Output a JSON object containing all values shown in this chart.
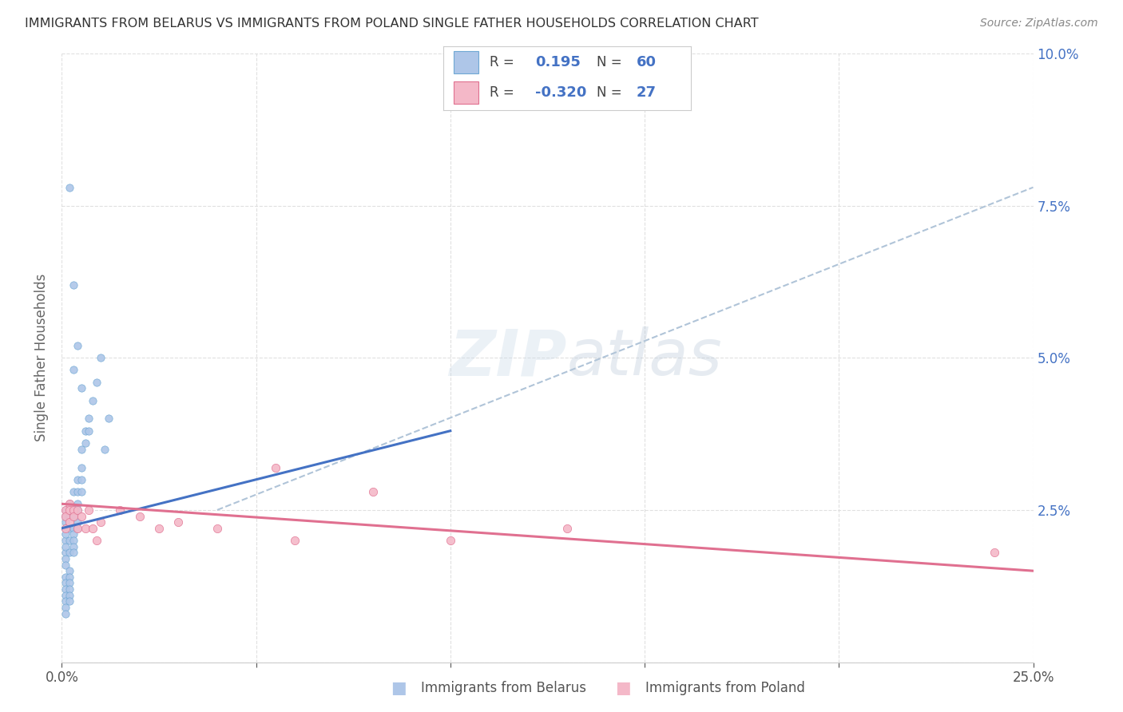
{
  "title": "IMMIGRANTS FROM BELARUS VS IMMIGRANTS FROM POLAND SINGLE FATHER HOUSEHOLDS CORRELATION CHART",
  "source": "Source: ZipAtlas.com",
  "ylabel": "Single Father Households",
  "watermark": "ZIPatlas",
  "legend_entries": [
    {
      "label": "Immigrants from Belarus",
      "color": "#aec6e8",
      "edge_color": "#6fa8d4",
      "R": 0.195,
      "N": 60
    },
    {
      "label": "Immigrants from Poland",
      "color": "#f4b8c8",
      "edge_color": "#e07090",
      "R": -0.32,
      "N": 27
    }
  ],
  "xlim": [
    0.0,
    0.25
  ],
  "ylim": [
    0.0,
    0.1
  ],
  "belarus_line": {
    "x0": 0.0,
    "y0": 0.022,
    "x1": 0.1,
    "y1": 0.038
  },
  "poland_line": {
    "x0": 0.0,
    "y0": 0.026,
    "x1": 0.25,
    "y1": 0.015
  },
  "dashed_line": {
    "x0": 0.04,
    "y0": 0.025,
    "x1": 0.25,
    "y1": 0.078
  },
  "belarus_scatter_x": [
    0.001,
    0.001,
    0.001,
    0.001,
    0.001,
    0.001,
    0.001,
    0.001,
    0.001,
    0.001,
    0.001,
    0.001,
    0.001,
    0.001,
    0.001,
    0.001,
    0.001,
    0.002,
    0.002,
    0.002,
    0.002,
    0.002,
    0.002,
    0.002,
    0.002,
    0.002,
    0.002,
    0.002,
    0.003,
    0.003,
    0.003,
    0.003,
    0.003,
    0.003,
    0.003,
    0.003,
    0.004,
    0.004,
    0.004,
    0.004,
    0.004,
    0.004,
    0.005,
    0.005,
    0.005,
    0.005,
    0.006,
    0.006,
    0.007,
    0.007,
    0.008,
    0.009,
    0.01,
    0.011,
    0.012,
    0.002,
    0.003,
    0.004,
    0.003,
    0.005
  ],
  "belarus_scatter_y": [
    0.022,
    0.02,
    0.018,
    0.025,
    0.023,
    0.021,
    0.019,
    0.024,
    0.017,
    0.016,
    0.014,
    0.013,
    0.012,
    0.011,
    0.01,
    0.009,
    0.008,
    0.026,
    0.024,
    0.022,
    0.02,
    0.018,
    0.015,
    0.014,
    0.013,
    0.012,
    0.011,
    0.01,
    0.028,
    0.025,
    0.024,
    0.022,
    0.021,
    0.02,
    0.019,
    0.018,
    0.03,
    0.028,
    0.026,
    0.025,
    0.023,
    0.022,
    0.035,
    0.032,
    0.03,
    0.028,
    0.038,
    0.036,
    0.04,
    0.038,
    0.043,
    0.046,
    0.05,
    0.035,
    0.04,
    0.078,
    0.062,
    0.052,
    0.048,
    0.045
  ],
  "poland_scatter_x": [
    0.001,
    0.001,
    0.001,
    0.002,
    0.002,
    0.002,
    0.003,
    0.003,
    0.004,
    0.004,
    0.005,
    0.006,
    0.007,
    0.008,
    0.009,
    0.01,
    0.015,
    0.02,
    0.025,
    0.03,
    0.04,
    0.055,
    0.06,
    0.08,
    0.1,
    0.13,
    0.24
  ],
  "poland_scatter_y": [
    0.025,
    0.024,
    0.022,
    0.026,
    0.025,
    0.023,
    0.025,
    0.024,
    0.025,
    0.022,
    0.024,
    0.022,
    0.025,
    0.022,
    0.02,
    0.023,
    0.025,
    0.024,
    0.022,
    0.023,
    0.022,
    0.032,
    0.02,
    0.028,
    0.02,
    0.022,
    0.018
  ],
  "scatter_size_belarus": 45,
  "scatter_size_poland": 55,
  "belarus_line_color": "#4472c4",
  "poland_line_color": "#e07090",
  "dashed_line_color": "#b0c4d8",
  "background_color": "#ffffff",
  "grid_color": "#dddddd",
  "title_color": "#333333",
  "right_axis_color": "#4472c4",
  "watermark_color": "#c8d8e8",
  "watermark_alpha": 0.35,
  "legend_box_color": "#f0f0f8"
}
